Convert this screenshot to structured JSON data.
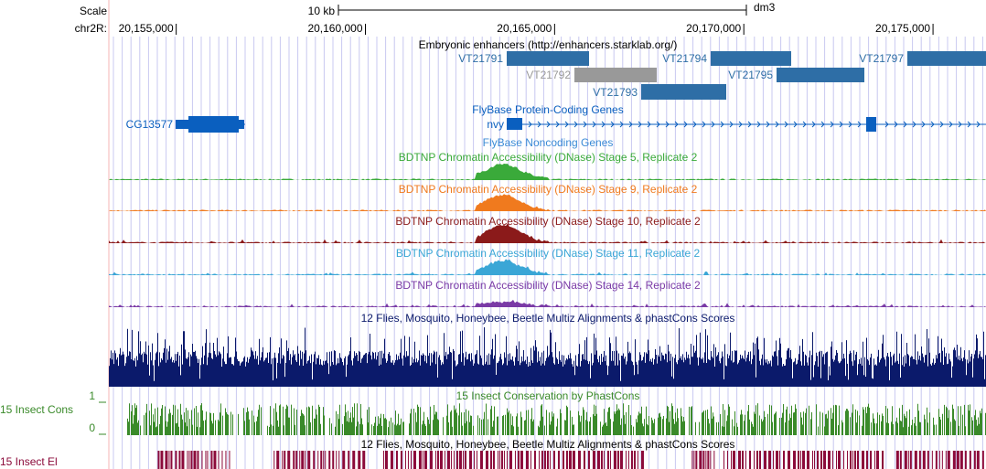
{
  "header": {
    "scale_label": "Scale",
    "chrom_label": "chr2R:",
    "scale_bar_label": "10 kb",
    "assembly": "dm3"
  },
  "ruler": {
    "ticks": [
      {
        "pos": 20155000,
        "label": "20,155,000"
      },
      {
        "pos": 20160000,
        "label": "20,160,000"
      },
      {
        "pos": 20165000,
        "label": "20,165,000"
      },
      {
        "pos": 20170000,
        "label": "20,170,000"
      },
      {
        "pos": 20175000,
        "label": "20,175,000"
      }
    ]
  },
  "colors": {
    "grid": "#c8c8f0",
    "redline": "#f4b4b4",
    "enhancer": "#2e6ea6",
    "enhancer_gray": "#999999",
    "gene": "#0a5fbf",
    "stage5": "#3aaa3a",
    "stage9": "#f07a1e",
    "stage10": "#8b1a1a",
    "stage11": "#3aa6d6",
    "stage14": "#7a3aa6",
    "multiz": "#0b1a6b",
    "phastcons": "#3a8a2a",
    "elements": "#8b0a3a"
  },
  "tracks": {
    "enhancers": {
      "title": "Embryonic enhancers (http://enhancers.starklab.org/)",
      "items": [
        {
          "name": "VT21791",
          "color": "enhancer"
        },
        {
          "name": "VT21792",
          "color": "enhancer_gray"
        },
        {
          "name": "VT21793",
          "color": "enhancer"
        },
        {
          "name": "VT21794",
          "color": "enhancer"
        },
        {
          "name": "VT21795",
          "color": "enhancer"
        },
        {
          "name": "VT21797",
          "color": "enhancer"
        }
      ]
    },
    "genes": {
      "title": "FlyBase Protein-Coding Genes",
      "items": [
        {
          "name": "CG13577"
        },
        {
          "name": "nvy"
        }
      ]
    },
    "noncoding": {
      "title": "FlyBase Noncoding Genes"
    },
    "dnase": [
      {
        "title": "BDTNP Chromatin Accessibility (DNase) Stage 5, Replicate 2",
        "color": "stage5"
      },
      {
        "title": "BDTNP Chromatin Accessibility (DNase) Stage 9, Replicate 2",
        "color": "stage9"
      },
      {
        "title": "BDTNP Chromatin Accessibility (DNase) Stage 10, Replicate 2",
        "color": "stage10"
      },
      {
        "title": "BDTNP Chromatin Accessibility (DNase) Stage 11, Replicate 2",
        "color": "stage11"
      },
      {
        "title": "BDTNP Chromatin Accessibility (DNase) Stage 14, Replicate 2",
        "color": "stage14"
      }
    ],
    "multiz": {
      "title": "12 Flies, Mosquito, Honeybee, Beetle Multiz Alignments & phastCons Scores"
    },
    "phastcons": {
      "title": "15 Insect Conservation by PhastCons",
      "side_label": "15 Insect Cons",
      "axis_top": "1",
      "axis_bottom": "0"
    },
    "elements": {
      "title": "12 Flies, Mosquito, Honeybee, Beetle Multiz Alignments & phastCons Scores",
      "side_label": "15 Insect El"
    }
  }
}
